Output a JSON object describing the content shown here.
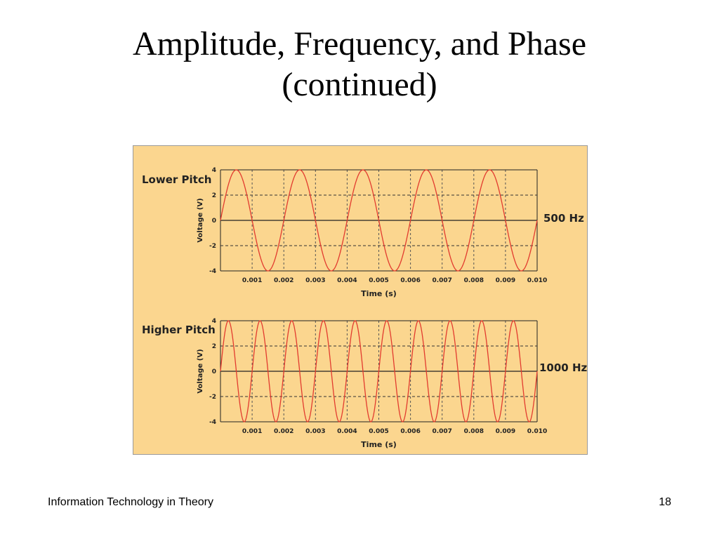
{
  "slide": {
    "title_line1": "Amplitude, Frequency, and Phase",
    "title_line2": "(continued)",
    "footer_left": "Information Technology in Theory",
    "page_number": "18"
  },
  "colors": {
    "panel_background": "#fbd68f",
    "wave": "#e23b2f",
    "axis": "#222222"
  },
  "chart_data": [
    {
      "type": "line",
      "title": "Lower Pitch",
      "annotation": "500 Hz",
      "xlabel": "Time (s)",
      "ylabel": "Voltage (V)",
      "xlim": [
        0,
        0.01
      ],
      "ylim": [
        -4,
        4
      ],
      "x_ticks": [
        "0.001",
        "0.002",
        "0.003",
        "0.004",
        "0.005",
        "0.006",
        "0.007",
        "0.008",
        "0.009",
        "0.010"
      ],
      "y_ticks": [
        "4",
        "2",
        "0",
        "-2",
        "-4"
      ],
      "grid": true,
      "series": [
        {
          "frequency_hz": 500,
          "amplitude_v": 4,
          "waveform": "sine"
        }
      ]
    },
    {
      "type": "line",
      "title": "Higher Pitch",
      "annotation": "1000 Hz",
      "xlabel": "Time (s)",
      "ylabel": "Voltage (V)",
      "xlim": [
        0,
        0.01
      ],
      "ylim": [
        -4,
        4
      ],
      "x_ticks": [
        "0.001",
        "0.002",
        "0.003",
        "0.004",
        "0.005",
        "0.006",
        "0.007",
        "0.008",
        "0.009",
        "0.010"
      ],
      "y_ticks": [
        "4",
        "2",
        "0",
        "-2",
        "-4"
      ],
      "grid": true,
      "series": [
        {
          "frequency_hz": 1000,
          "amplitude_v": 4,
          "waveform": "sine"
        }
      ]
    }
  ]
}
